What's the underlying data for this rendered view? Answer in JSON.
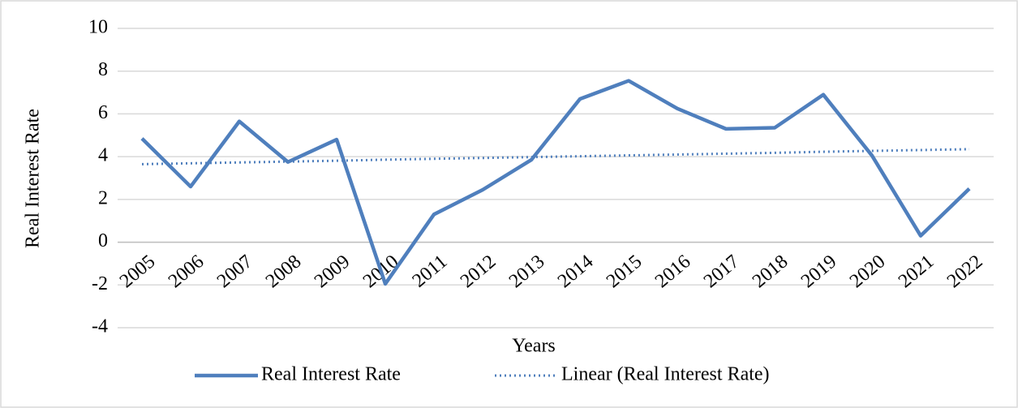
{
  "chart_data": {
    "type": "line",
    "x_label": "Years",
    "y_label": "Real Interest Rate",
    "categories": [
      "2005",
      "2006",
      "2007",
      "2008",
      "2009",
      "2010",
      "2011",
      "2012",
      "2013",
      "2014",
      "2015",
      "2016",
      "2017",
      "2018",
      "2019",
      "2020",
      "2021",
      "2022"
    ],
    "series": [
      {
        "name": "Real Interest Rate",
        "color": "#4f7fbd",
        "line_style": "solid",
        "values": [
          4.85,
          2.6,
          5.65,
          3.75,
          4.8,
          -1.95,
          1.3,
          2.45,
          3.85,
          6.7,
          7.55,
          6.25,
          5.3,
          5.35,
          6.9,
          4.05,
          0.3,
          2.5
        ]
      },
      {
        "name": "Linear (Real Interest Rate)",
        "color": "#4f7fbd",
        "line_style": "dotted",
        "values": [
          3.65,
          3.69,
          3.73,
          3.77,
          3.81,
          3.86,
          3.9,
          3.94,
          3.98,
          4.02,
          4.06,
          4.1,
          4.14,
          4.18,
          4.23,
          4.27,
          4.31,
          4.35
        ]
      }
    ],
    "ylim": [
      -4,
      10
    ],
    "yticks": [
      -4,
      -2,
      0,
      2,
      4,
      6,
      8,
      10
    ],
    "grid": true,
    "legend": "bottom"
  }
}
